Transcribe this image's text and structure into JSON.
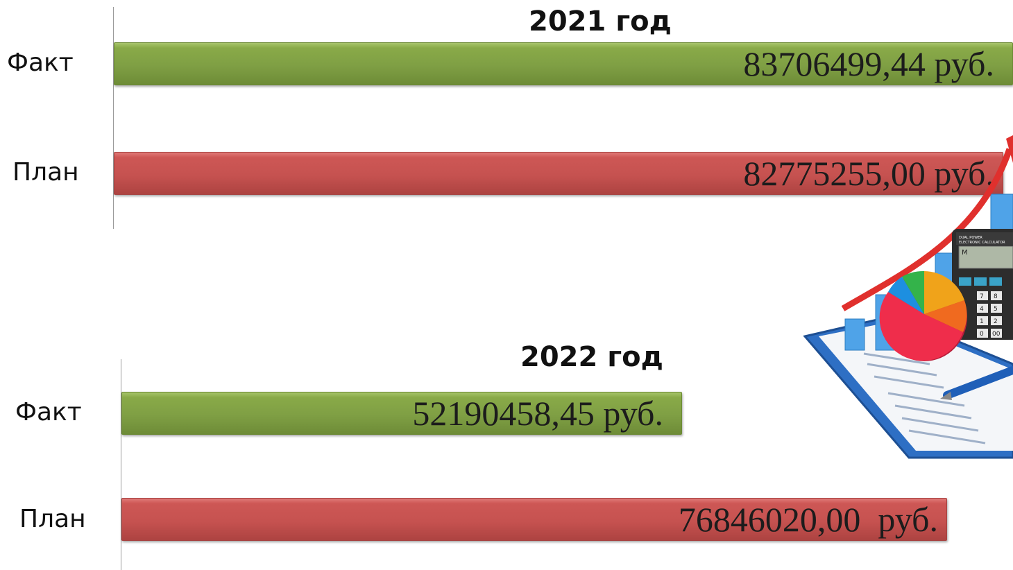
{
  "chart_data": [
    {
      "type": "bar",
      "orientation": "horizontal",
      "title": "2021 год",
      "categories": [
        "Факт",
        "План"
      ],
      "values": [
        83706499.44,
        82775255.0
      ],
      "value_labels": [
        "83706499,44 руб.",
        "82775255,00 руб."
      ],
      "colors": [
        "#7f9f44",
        "#c65250"
      ],
      "grid": false,
      "legend": "none"
    },
    {
      "type": "bar",
      "orientation": "horizontal",
      "title": "2022 год",
      "categories": [
        "Факт",
        "План"
      ],
      "values": [
        52190458.45,
        76846020.0
      ],
      "value_labels": [
        "52190458,45 руб.",
        "76846020,00  руб."
      ],
      "colors": [
        "#7f9f44",
        "#c65250"
      ],
      "grid": false,
      "legend": "none"
    }
  ],
  "illustration": {
    "icon": "finance-calculator-clipboard-pie-chart-icon",
    "calculator_brand": "DUAL POWER",
    "calculator_model": "ELECTRONIC CALCULATOR",
    "calculator_keys": [
      "M",
      "7",
      "8",
      "4",
      "5",
      "1",
      "2",
      "0",
      "00"
    ]
  }
}
